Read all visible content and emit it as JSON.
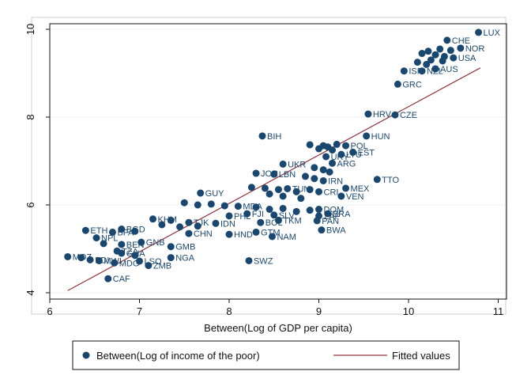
{
  "chart_data": {
    "type": "scatter",
    "title": "",
    "xlabel": "Between(Log of GDP per capita)",
    "ylabel": "",
    "xlim": [
      6,
      11
    ],
    "ylim": [
      4,
      10
    ],
    "xticks": [
      6,
      7,
      8,
      9,
      10,
      11
    ],
    "yticks": [
      4,
      6,
      8,
      10
    ],
    "grid": "horizontal",
    "legend_position": "bottom",
    "colors": {
      "points": "#1a476f",
      "fitted_line": "#90353b",
      "label": "#1a476f"
    },
    "series": [
      {
        "name": "Between(Log of income of the poor)",
        "type": "scatter",
        "points": [
          {
            "x": 10.78,
            "y": 9.93,
            "label": "LUX"
          },
          {
            "x": 10.43,
            "y": 9.75,
            "label": "CHE"
          },
          {
            "x": 10.58,
            "y": 9.57,
            "label": "NOR"
          },
          {
            "x": 10.35,
            "y": 9.55
          },
          {
            "x": 10.47,
            "y": 9.52
          },
          {
            "x": 10.22,
            "y": 9.5
          },
          {
            "x": 10.15,
            "y": 9.45
          },
          {
            "x": 10.3,
            "y": 9.42
          },
          {
            "x": 10.4,
            "y": 9.38
          },
          {
            "x": 10.5,
            "y": 9.35,
            "label": "USA"
          },
          {
            "x": 10.25,
            "y": 9.3
          },
          {
            "x": 10.1,
            "y": 9.25
          },
          {
            "x": 10.38,
            "y": 9.28
          },
          {
            "x": 10.2,
            "y": 9.2
          },
          {
            "x": 10.3,
            "y": 9.1,
            "label": "AUS"
          },
          {
            "x": 10.15,
            "y": 9.05,
            "label": "NZL"
          },
          {
            "x": 9.95,
            "y": 9.05,
            "label": "ISR"
          },
          {
            "x": 9.88,
            "y": 8.75,
            "label": "GRC"
          },
          {
            "x": 9.55,
            "y": 8.07,
            "label": "HRV"
          },
          {
            "x": 9.85,
            "y": 8.05,
            "label": "CZE"
          },
          {
            "x": 8.37,
            "y": 7.57,
            "label": "BIH"
          },
          {
            "x": 9.53,
            "y": 7.57,
            "label": "HUN"
          },
          {
            "x": 8.9,
            "y": 7.37
          },
          {
            "x": 9.05,
            "y": 7.35
          },
          {
            "x": 9.1,
            "y": 7.32
          },
          {
            "x": 9.2,
            "y": 7.38
          },
          {
            "x": 9.3,
            "y": 7.35,
            "label": "POL"
          },
          {
            "x": 9.0,
            "y": 7.28
          },
          {
            "x": 9.15,
            "y": 7.25
          },
          {
            "x": 9.38,
            "y": 7.2,
            "label": "EST"
          },
          {
            "x": 9.25,
            "y": 7.15,
            "label": "LTU"
          },
          {
            "x": 9.08,
            "y": 7.1,
            "label": "URY"
          },
          {
            "x": 9.15,
            "y": 6.95,
            "label": "ARG"
          },
          {
            "x": 8.6,
            "y": 6.93,
            "label": "UKR"
          },
          {
            "x": 8.95,
            "y": 6.85
          },
          {
            "x": 9.05,
            "y": 6.8
          },
          {
            "x": 9.12,
            "y": 6.75
          },
          {
            "x": 8.3,
            "y": 6.72,
            "label": "JOR"
          },
          {
            "x": 8.5,
            "y": 6.7,
            "label": "LBN"
          },
          {
            "x": 8.85,
            "y": 6.65
          },
          {
            "x": 8.95,
            "y": 6.6
          },
          {
            "x": 9.05,
            "y": 6.55,
            "label": "IRN"
          },
          {
            "x": 9.65,
            "y": 6.58,
            "label": "TTO"
          },
          {
            "x": 8.25,
            "y": 6.4
          },
          {
            "x": 8.4,
            "y": 6.38
          },
          {
            "x": 8.55,
            "y": 6.35
          },
          {
            "x": 8.65,
            "y": 6.37,
            "label": "TUN"
          },
          {
            "x": 8.75,
            "y": 6.3
          },
          {
            "x": 8.9,
            "y": 6.35
          },
          {
            "x": 9.0,
            "y": 6.3,
            "label": "CRI"
          },
          {
            "x": 9.3,
            "y": 6.38,
            "label": "MEX"
          },
          {
            "x": 8.45,
            "y": 6.25
          },
          {
            "x": 8.6,
            "y": 6.2
          },
          {
            "x": 8.8,
            "y": 6.15
          },
          {
            "x": 9.25,
            "y": 6.2,
            "label": "VEN"
          },
          {
            "x": 7.68,
            "y": 6.27,
            "label": "GUY"
          },
          {
            "x": 7.5,
            "y": 6.05
          },
          {
            "x": 7.65,
            "y": 6.0
          },
          {
            "x": 7.8,
            "y": 6.02
          },
          {
            "x": 7.95,
            "y": 5.98
          },
          {
            "x": 8.1,
            "y": 5.97,
            "label": "MDA"
          },
          {
            "x": 8.3,
            "y": 5.95
          },
          {
            "x": 8.45,
            "y": 5.9
          },
          {
            "x": 8.6,
            "y": 5.92
          },
          {
            "x": 8.75,
            "y": 5.85
          },
          {
            "x": 8.9,
            "y": 5.88
          },
          {
            "x": 9.0,
            "y": 5.9,
            "label": "DOM"
          },
          {
            "x": 9.1,
            "y": 5.8,
            "label": "BRA"
          },
          {
            "x": 8.2,
            "y": 5.8,
            "label": "FJI"
          },
          {
            "x": 8.0,
            "y": 5.75,
            "label": "PHL"
          },
          {
            "x": 8.5,
            "y": 5.77,
            "label": "SLV"
          },
          {
            "x": 9.0,
            "y": 5.75,
            "label": "ZAF"
          },
          {
            "x": 7.15,
            "y": 5.68,
            "label": "KHM"
          },
          {
            "x": 7.35,
            "y": 5.65
          },
          {
            "x": 7.55,
            "y": 5.6,
            "label": "TJK"
          },
          {
            "x": 7.25,
            "y": 5.55
          },
          {
            "x": 7.45,
            "y": 5.5
          },
          {
            "x": 7.65,
            "y": 5.52
          },
          {
            "x": 7.85,
            "y": 5.58,
            "label": "IDN"
          },
          {
            "x": 8.35,
            "y": 5.6,
            "label": "BOL"
          },
          {
            "x": 8.55,
            "y": 5.65,
            "label": "TKM"
          },
          {
            "x": 8.98,
            "y": 5.64,
            "label": "PAN"
          },
          {
            "x": 7.55,
            "y": 5.35,
            "label": "CHN"
          },
          {
            "x": 8.0,
            "y": 5.33,
            "label": "HND"
          },
          {
            "x": 8.3,
            "y": 5.38,
            "label": "GTM"
          },
          {
            "x": 8.48,
            "y": 5.28,
            "label": "NAM"
          },
          {
            "x": 9.03,
            "y": 5.43,
            "label": "BWA"
          },
          {
            "x": 6.4,
            "y": 5.42,
            "label": "ETH"
          },
          {
            "x": 6.8,
            "y": 5.45,
            "label": "BGD"
          },
          {
            "x": 6.95,
            "y": 5.4
          },
          {
            "x": 6.52,
            "y": 5.25,
            "label": "NPL"
          },
          {
            "x": 6.7,
            "y": 5.38,
            "label": "BFA"
          },
          {
            "x": 6.8,
            "y": 5.1,
            "label": "BEN"
          },
          {
            "x": 6.6,
            "y": 5.12
          },
          {
            "x": 7.02,
            "y": 5.15,
            "label": "GNB"
          },
          {
            "x": 7.35,
            "y": 5.05,
            "label": "GMB"
          },
          {
            "x": 6.75,
            "y": 4.95,
            "label": "TZA"
          },
          {
            "x": 6.8,
            "y": 4.9,
            "label": "GHA"
          },
          {
            "x": 6.95,
            "y": 4.85
          },
          {
            "x": 6.2,
            "y": 4.82,
            "label": "MOZ"
          },
          {
            "x": 6.35,
            "y": 4.8
          },
          {
            "x": 6.45,
            "y": 4.75,
            "label": "BDI"
          },
          {
            "x": 6.55,
            "y": 4.73,
            "label": "MWI"
          },
          {
            "x": 6.72,
            "y": 4.68,
            "label": "MDG"
          },
          {
            "x": 7.0,
            "y": 4.72,
            "label": "LSO"
          },
          {
            "x": 7.1,
            "y": 4.62,
            "label": "ZMB"
          },
          {
            "x": 7.35,
            "y": 4.8,
            "label": "NGA"
          },
          {
            "x": 8.22,
            "y": 4.73,
            "label": "SWZ"
          },
          {
            "x": 6.65,
            "y": 4.32,
            "label": "CAF"
          }
        ]
      },
      {
        "name": "Fitted values",
        "type": "line",
        "points": [
          {
            "x": 6.2,
            "y": 4.05
          },
          {
            "x": 10.8,
            "y": 9.12
          }
        ]
      }
    ]
  }
}
